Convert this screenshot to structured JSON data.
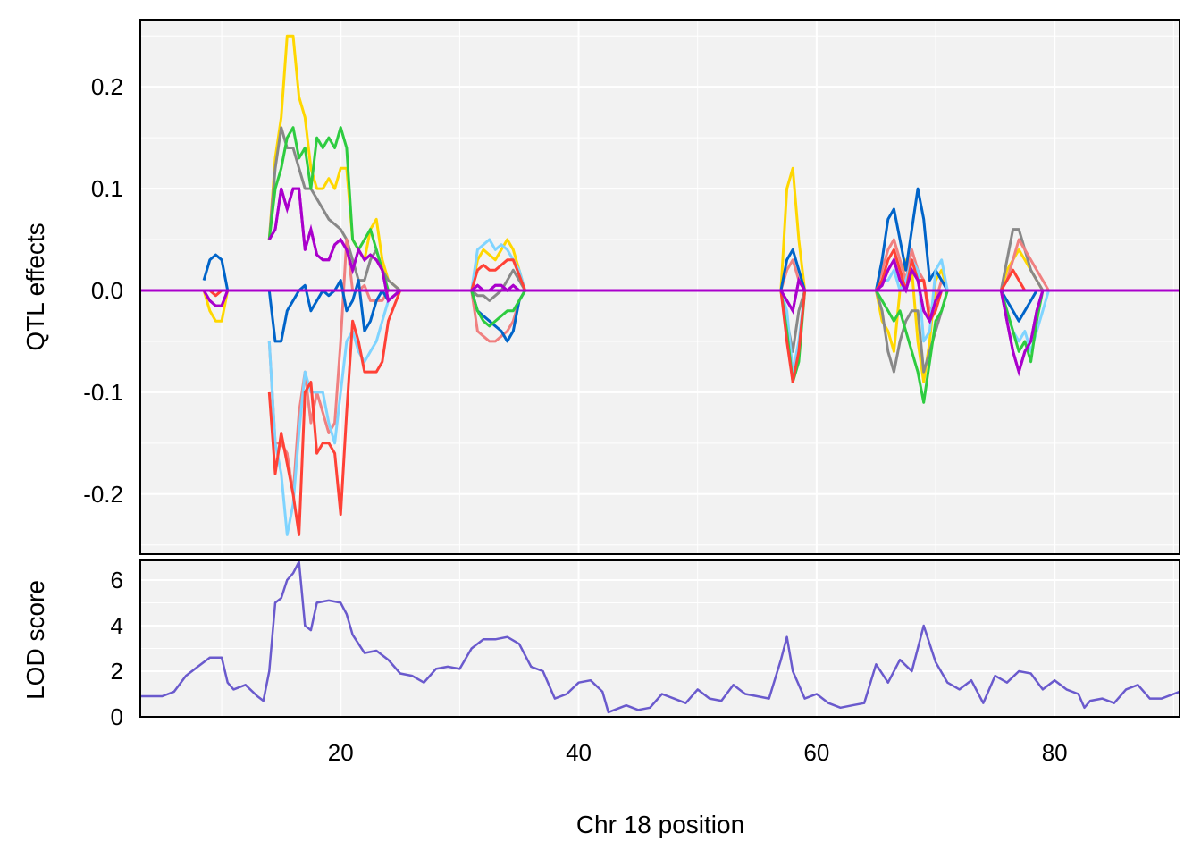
{
  "chart_data": [
    {
      "type": "line",
      "title": "",
      "xlabel": "Chr 18 position",
      "ylabel": "QTL effects",
      "xlim": [
        3.16,
        90.5
      ],
      "ylim": [
        -0.259,
        0.266
      ],
      "xticks": [
        20,
        40,
        60,
        80
      ],
      "yticks": [
        {
          "v": 0.2,
          "label": "0.2"
        },
        {
          "v": 0.1,
          "label": "0.1"
        },
        {
          "v": 0.0,
          "label": "0.0"
        },
        {
          "v": -0.1,
          "label": "-0.1"
        },
        {
          "v": -0.2,
          "label": "-0.2"
        }
      ],
      "grid": true,
      "series": [
        {
          "id": "s1",
          "color": "#FFD700"
        },
        {
          "id": "s2",
          "color": "#888888"
        },
        {
          "id": "s3",
          "color": "#F08080"
        },
        {
          "id": "s4",
          "color": "#0064C9"
        },
        {
          "id": "s5",
          "color": "#7FD4FF"
        },
        {
          "id": "s6",
          "color": "#2ECC40"
        },
        {
          "id": "s7",
          "color": "#FF4136"
        },
        {
          "id": "s8",
          "color": "#AA00CC"
        }
      ],
      "baseline_series": "s8",
      "regions": [
        {
          "x": [
            8.5,
            9,
            9.5,
            10,
            10.5
          ],
          "values": {
            "s1": [
              0,
              -0.02,
              -0.03,
              -0.03,
              0
            ],
            "s4": [
              0.01,
              0.03,
              0.035,
              0.03,
              0
            ],
            "s7": [
              0,
              0,
              -0.005,
              0,
              0
            ],
            "s8": [
              0,
              -0.01,
              -0.015,
              -0.015,
              0
            ]
          }
        },
        {
          "x": [
            14,
            14.5,
            15,
            15.5,
            16,
            16.5,
            17,
            17.5,
            18,
            18.5,
            19,
            19.5,
            20,
            20.5,
            21,
            21.5,
            22,
            22.5,
            23,
            23.5,
            24,
            25
          ],
          "values": {
            "s1": [
              0.05,
              0.13,
              0.17,
              0.25,
              0.25,
              0.19,
              0.17,
              0.12,
              0.1,
              0.1,
              0.11,
              0.1,
              0.12,
              0.12,
              0.05,
              0.04,
              0.03,
              0.06,
              0.07,
              0.03,
              0.01,
              0
            ],
            "s2": [
              0.05,
              0.12,
              0.16,
              0.14,
              0.14,
              0.12,
              0.1,
              0.1,
              0.09,
              0.08,
              0.07,
              0.065,
              0.06,
              0.05,
              0.03,
              0.01,
              0.01,
              0.03,
              0.04,
              0.02,
              0.01,
              0
            ],
            "s6": [
              0.05,
              0.1,
              0.12,
              0.15,
              0.16,
              0.13,
              0.14,
              0.1,
              0.15,
              0.14,
              0.15,
              0.14,
              0.16,
              0.14,
              0.05,
              0.04,
              0.05,
              0.06,
              0.04,
              0.02,
              0,
              0
            ],
            "s4": [
              0,
              -0.05,
              -0.05,
              -0.02,
              -0.01,
              0,
              0.005,
              -0.02,
              -0.01,
              0,
              -0.005,
              0,
              0.01,
              -0.02,
              -0.01,
              0.01,
              -0.04,
              -0.03,
              -0.01,
              0,
              -0.01,
              0
            ],
            "s3": [
              -0.05,
              -0.15,
              -0.15,
              -0.16,
              -0.2,
              -0.12,
              -0.08,
              -0.13,
              -0.1,
              -0.12,
              -0.14,
              -0.13,
              -0.05,
              0.05,
              0,
              0,
              0.005,
              -0.01,
              -0.01,
              -0.01,
              0,
              0
            ],
            "s5": [
              -0.05,
              -0.15,
              -0.18,
              -0.24,
              -0.21,
              -0.14,
              -0.08,
              -0.1,
              -0.1,
              -0.1,
              -0.13,
              -0.15,
              -0.1,
              -0.05,
              -0.04,
              -0.06,
              -0.07,
              -0.06,
              -0.05,
              -0.03,
              -0.01,
              0
            ],
            "s7": [
              -0.1,
              -0.18,
              -0.14,
              -0.17,
              -0.2,
              -0.24,
              -0.1,
              -0.09,
              -0.16,
              -0.15,
              -0.15,
              -0.16,
              -0.22,
              -0.12,
              -0.03,
              -0.05,
              -0.08,
              -0.08,
              -0.08,
              -0.07,
              -0.03,
              0
            ],
            "s8": [
              0.05,
              0.06,
              0.1,
              0.08,
              0.1,
              0.1,
              0.04,
              0.06,
              0.035,
              0.03,
              0.03,
              0.045,
              0.05,
              0.04,
              0.02,
              0.04,
              0.03,
              0.035,
              0.03,
              0.02,
              -0.01,
              0
            ]
          }
        },
        {
          "x": [
            31,
            31.5,
            32,
            32.5,
            33,
            33.5,
            34,
            34.5,
            35,
            35.5
          ],
          "values": {
            "s1": [
              0,
              0.03,
              0.04,
              0.035,
              0.03,
              0.04,
              0.05,
              0.04,
              0.02,
              0
            ],
            "s5": [
              0,
              0.04,
              0.045,
              0.05,
              0.04,
              0.045,
              0.04,
              0.03,
              0.02,
              0
            ],
            "s7": [
              0,
              0.02,
              0.025,
              0.02,
              0.02,
              0.025,
              0.03,
              0.03,
              0.015,
              0
            ],
            "s2": [
              0,
              -0.005,
              -0.005,
              -0.01,
              -0.005,
              0,
              0.01,
              0.02,
              0.01,
              0
            ],
            "s6": [
              0,
              -0.02,
              -0.03,
              -0.035,
              -0.03,
              -0.025,
              -0.02,
              -0.02,
              -0.01,
              0
            ],
            "s4": [
              0,
              -0.02,
              -0.025,
              -0.03,
              -0.035,
              -0.04,
              -0.05,
              -0.04,
              -0.01,
              0
            ],
            "s3": [
              0,
              -0.04,
              -0.045,
              -0.05,
              -0.05,
              -0.045,
              -0.04,
              -0.03,
              -0.01,
              0
            ],
            "s8": [
              0,
              0.005,
              0,
              0,
              0.005,
              0.005,
              0,
              0.005,
              0,
              0
            ]
          }
        },
        {
          "x": [
            57,
            57.5,
            58,
            58.5,
            59
          ],
          "values": {
            "s1": [
              0,
              0.1,
              0.12,
              0.05,
              0
            ],
            "s4": [
              0,
              0.03,
              0.04,
              0.02,
              0
            ],
            "s3": [
              0,
              0.02,
              0.03,
              0.01,
              0
            ],
            "s2": [
              0,
              -0.03,
              -0.06,
              -0.02,
              0
            ],
            "s5": [
              0,
              -0.02,
              -0.08,
              -0.05,
              0
            ],
            "s7": [
              0,
              -0.05,
              -0.09,
              -0.06,
              0
            ],
            "s6": [
              0,
              -0.04,
              -0.09,
              -0.07,
              0
            ],
            "s8": [
              0,
              -0.01,
              -0.02,
              0.01,
              0
            ]
          }
        },
        {
          "x": [
            65,
            65.5,
            66,
            66.5,
            67,
            67.5,
            68,
            68.5,
            69,
            69.5,
            70,
            70.5,
            71
          ],
          "values": {
            "s1": [
              0,
              -0.03,
              -0.04,
              -0.06,
              0,
              0.03,
              0.02,
              -0.05,
              -0.09,
              -0.05,
              0.01,
              0.02,
              0
            ],
            "s2": [
              0,
              -0.02,
              -0.06,
              -0.08,
              -0.05,
              -0.03,
              -0.02,
              -0.02,
              -0.08,
              -0.06,
              -0.04,
              -0.02,
              0
            ],
            "s6": [
              0,
              -0.01,
              -0.02,
              -0.03,
              -0.02,
              -0.04,
              -0.06,
              -0.08,
              -0.11,
              -0.07,
              -0.03,
              -0.02,
              0
            ],
            "s3": [
              0,
              0.02,
              0.04,
              0.05,
              0.03,
              0.01,
              0.04,
              0.02,
              0.01,
              -0.02,
              -0.01,
              0.01,
              0
            ],
            "s7": [
              0,
              0.01,
              0.03,
              0.04,
              0.02,
              0,
              0.03,
              0.01,
              0.01,
              -0.03,
              -0.02,
              0,
              0
            ],
            "s5": [
              0,
              0.01,
              0.01,
              0.02,
              0,
              0.01,
              0.03,
              0.02,
              -0.05,
              -0.04,
              0.02,
              0.03,
              0
            ],
            "s4": [
              0,
              0.03,
              0.07,
              0.08,
              0.05,
              0.02,
              0.06,
              0.1,
              0.07,
              0.01,
              0.02,
              0.01,
              0
            ],
            "s8": [
              0,
              0.005,
              0.02,
              0.03,
              0.01,
              0,
              0.02,
              0.01,
              -0.02,
              -0.03,
              -0.01,
              0,
              0
            ]
          }
        },
        {
          "x": [
            75.5,
            76,
            76.5,
            77,
            77.5,
            78,
            78.5,
            79,
            79.5
          ],
          "values": {
            "s2": [
              0,
              0.03,
              0.06,
              0.06,
              0.04,
              0.02,
              0.01,
              0,
              0
            ],
            "s3": [
              0,
              0.01,
              0.03,
              0.05,
              0.04,
              0.03,
              0.02,
              0.01,
              0
            ],
            "s1": [
              0,
              0.02,
              0.03,
              0.04,
              0.03,
              0.02,
              0.01,
              0,
              0
            ],
            "s7": [
              0,
              0.01,
              0.02,
              0.01,
              0,
              0,
              0,
              0,
              0
            ],
            "s4": [
              0,
              -0.01,
              -0.02,
              -0.03,
              -0.02,
              -0.01,
              0,
              0,
              0
            ],
            "s5": [
              0,
              -0.02,
              -0.04,
              -0.05,
              -0.04,
              -0.06,
              -0.04,
              -0.02,
              0
            ],
            "s6": [
              0,
              -0.02,
              -0.04,
              -0.06,
              -0.05,
              -0.07,
              -0.03,
              0,
              0
            ],
            "s8": [
              0,
              -0.03,
              -0.06,
              -0.08,
              -0.06,
              -0.05,
              -0.02,
              0,
              0
            ]
          }
        }
      ]
    },
    {
      "type": "line",
      "xlabel": "Chr 18 position",
      "ylabel": "LOD score",
      "xlim": [
        3.16,
        90.5
      ],
      "ylim": [
        0,
        6.86
      ],
      "yticks": [
        {
          "v": 0,
          "label": "0"
        },
        {
          "v": 2,
          "label": "2"
        },
        {
          "v": 4,
          "label": "4"
        },
        {
          "v": 6,
          "label": "6"
        }
      ],
      "color": "#6A5ACD",
      "x": [
        3.2,
        4,
        5,
        6,
        7,
        8,
        9,
        10,
        10.5,
        11,
        12,
        13,
        13.5,
        14,
        14.5,
        15,
        15.5,
        16,
        16.5,
        17,
        17.5,
        18,
        19,
        20,
        20.5,
        21,
        22,
        23,
        24,
        25,
        26,
        27,
        28,
        29,
        30,
        31,
        32,
        33,
        34,
        35,
        36,
        37,
        38,
        39,
        40,
        41,
        42,
        42.5,
        43,
        44,
        45,
        46,
        47,
        48,
        49,
        50,
        51,
        52,
        53,
        54,
        55,
        56,
        57,
        57.5,
        58,
        59,
        60,
        61,
        62,
        63,
        64,
        65,
        66,
        67,
        68,
        69,
        70,
        71,
        72,
        73,
        74,
        75,
        76,
        77,
        78,
        79,
        80,
        81,
        82,
        82.5,
        83,
        84,
        85,
        86,
        87,
        88,
        89,
        90,
        90.5
      ],
      "y": [
        0.9,
        0.9,
        0.9,
        1.1,
        1.8,
        2.2,
        2.6,
        2.6,
        1.5,
        1.2,
        1.4,
        0.9,
        0.7,
        2,
        5,
        5.2,
        6,
        6.3,
        6.8,
        4,
        3.8,
        5,
        5.1,
        5,
        4.5,
        3.6,
        2.8,
        2.9,
        2.5,
        1.9,
        1.8,
        1.5,
        2.1,
        2.2,
        2.1,
        3,
        3.4,
        3.4,
        3.5,
        3.2,
        2.2,
        2,
        0.8,
        1,
        1.5,
        1.6,
        1.1,
        0.2,
        0.3,
        0.5,
        0.3,
        0.4,
        1,
        0.8,
        0.6,
        1.2,
        0.8,
        0.7,
        1.4,
        1,
        0.9,
        0.8,
        2.5,
        3.5,
        2,
        0.8,
        1,
        0.6,
        0.4,
        0.5,
        0.6,
        2.3,
        1.5,
        2.5,
        2,
        4,
        2.4,
        1.5,
        1.2,
        1.6,
        0.6,
        1.8,
        1.5,
        2,
        1.9,
        1.2,
        1.6,
        1.2,
        1,
        0.4,
        0.7,
        0.8,
        0.6,
        1.2,
        1.4,
        0.8,
        0.8,
        1,
        1.1
      ]
    }
  ]
}
